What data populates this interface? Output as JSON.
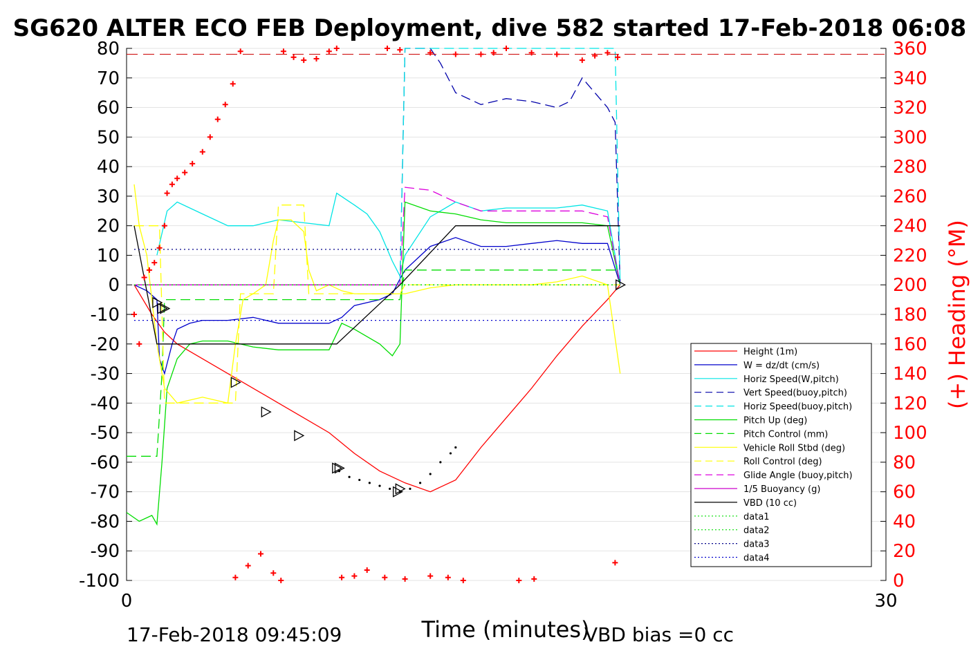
{
  "chart_data": {
    "type": "line",
    "title": "SG620 ALTER ECO FEB Deployment, dive 582 started 17-Feb-2018 06:08",
    "xlabel": "Time (minutes)",
    "ylabel_right": "(+) Heading (°M)",
    "xlim": [
      0,
      30
    ],
    "ylim_left": [
      -100,
      80
    ],
    "ylim_right": [
      0,
      360
    ],
    "x_ticks": [
      "0",
      "30"
    ],
    "y_ticks_left": [
      "80",
      "70",
      "60",
      "50",
      "40",
      "30",
      "20",
      "10",
      "0",
      "-10",
      "-20",
      "-30",
      "-40",
      "-50",
      "-60",
      "-70",
      "-80",
      "-90",
      "-100"
    ],
    "y_ticks_right": [
      "360",
      "340",
      "320",
      "300",
      "280",
      "260",
      "240",
      "220",
      "200",
      "180",
      "160",
      "140",
      "120",
      "100",
      "80",
      "60",
      "40",
      "20",
      "0"
    ],
    "footer_left": "17-Feb-2018 09:45:09",
    "footer_right": "VBD bias =0 cc",
    "grid": true,
    "legend_position": "lower-right",
    "legend": [
      {
        "label": "Height (1m)",
        "color": "#ff0000",
        "style": "solid"
      },
      {
        "label": "W = dz/dt (cm/s)",
        "color": "#0000cc",
        "style": "solid"
      },
      {
        "label": "Horiz Speed(W,pitch)",
        "color": "#00e5e5",
        "style": "solid"
      },
      {
        "label": "Vert Speed(buoy,pitch)",
        "color": "#0000aa",
        "style": "dashed"
      },
      {
        "label": "Horiz Speed(buoy,pitch)",
        "color": "#00e5e5",
        "style": "dashed"
      },
      {
        "label": "Pitch Up (deg)",
        "color": "#00dd00",
        "style": "solid"
      },
      {
        "label": "Pitch Control (mm)",
        "color": "#00dd00",
        "style": "dashed"
      },
      {
        "label": "Vehicle Roll Stbd (deg)",
        "color": "#ffff00",
        "style": "solid"
      },
      {
        "label": "Roll Control (deg)",
        "color": "#ffff00",
        "style": "dashed"
      },
      {
        "label": "Glide Angle (buoy,pitch)",
        "color": "#dd00dd",
        "style": "dashed"
      },
      {
        "label": "1/5 Buoyancy (g)",
        "color": "#cc00cc",
        "style": "solid"
      },
      {
        "label": "VBD (10 cc)",
        "color": "#000000",
        "style": "solid"
      },
      {
        "label": "data1",
        "color": "#00dd00",
        "style": "dotted"
      },
      {
        "label": "data2",
        "color": "#00dd00",
        "style": "dotted"
      },
      {
        "label": "data3",
        "color": "#000088",
        "style": "dotted"
      },
      {
        "label": "data4",
        "color": "#0000cc",
        "style": "dotted"
      }
    ],
    "series": [
      {
        "name": "Height (1m)",
        "color": "#ff0000",
        "style": "solid",
        "x": [
          0.3,
          1.0,
          1.5,
          2.0,
          3.0,
          4.0,
          5.0,
          6.0,
          7.0,
          8.0,
          9.0,
          10.0,
          11.0,
          12.0,
          13.0,
          14.0,
          15.0,
          16.0,
          17.0,
          18.0,
          19.0,
          19.5
        ],
        "y": [
          0,
          -10,
          -16,
          -20,
          -25,
          -30,
          -35,
          -40,
          -45,
          -50,
          -57,
          -63,
          -67,
          -70,
          -66,
          -55,
          -45,
          -35,
          -24,
          -14,
          -5,
          0
        ]
      },
      {
        "name": "W = dz/dt (cm/s)",
        "color": "#0000cc",
        "style": "solid",
        "x": [
          0.3,
          0.8,
          1.2,
          1.3,
          1.5,
          1.8,
          2.0,
          2.5,
          3,
          4,
          5,
          6,
          7,
          8,
          8.5,
          9,
          10,
          10.5,
          10.8,
          11,
          12,
          13,
          14,
          15,
          16,
          17,
          18,
          19,
          19.5
        ],
        "y": [
          0,
          -2,
          -5,
          -25,
          -30,
          -20,
          -15,
          -13,
          -12,
          -12,
          -11,
          -13,
          -13,
          -13,
          -11,
          -7,
          -5,
          -3,
          2,
          5,
          13,
          16,
          13,
          13,
          14,
          15,
          14,
          14,
          0
        ]
      },
      {
        "name": "Horiz Speed(W,pitch)",
        "color": "#00e5e5",
        "style": "solid",
        "x": [
          1.2,
          1.6,
          2,
          3,
          4,
          5,
          6,
          7,
          8,
          8.3,
          9,
          9.5,
          10,
          10.5,
          10.8,
          11,
          12,
          13,
          14,
          15,
          16,
          17,
          18,
          19,
          19.5
        ],
        "y": [
          10,
          25,
          28,
          24,
          20,
          20,
          22,
          21,
          20,
          31,
          27,
          24,
          18,
          8,
          3,
          10,
          23,
          28,
          25,
          26,
          26,
          26,
          27,
          25,
          0
        ]
      },
      {
        "name": "Vert Speed(buoy,pitch)",
        "color": "#0000aa",
        "style": "dashed",
        "x": [
          10.8,
          11,
          11.2,
          12,
          12.4,
          13,
          14,
          15,
          16,
          17,
          17.5,
          18,
          18.5,
          19,
          19.3,
          19.5
        ],
        "y": [
          0,
          80,
          80,
          80,
          75,
          65,
          61,
          63,
          62,
          60,
          62,
          70,
          65,
          60,
          55,
          0
        ]
      },
      {
        "name": "Horiz Speed(buoy,pitch)",
        "color": "#00e5e5",
        "style": "dashed",
        "x": [
          10.8,
          11,
          19.3,
          19.5
        ],
        "y": [
          0,
          80,
          80,
          0
        ]
      },
      {
        "name": "Pitch Up (deg)",
        "color": "#00dd00",
        "style": "solid",
        "x": [
          0,
          0.5,
          1,
          1.2,
          1.4,
          1.6,
          2,
          2.5,
          3,
          4,
          5,
          6,
          7,
          8,
          8.5,
          9,
          10,
          10.5,
          10.8,
          11,
          12,
          13,
          14,
          15,
          16,
          17,
          18,
          19,
          19.5
        ],
        "y": [
          -77,
          -80,
          -78,
          -81,
          -60,
          -35,
          -25,
          -20,
          -19,
          -19,
          -21,
          -22,
          -22,
          -22,
          -13,
          -15,
          -20,
          -24,
          -20,
          28,
          25,
          24,
          22,
          21,
          21,
          21,
          21,
          20,
          0
        ]
      },
      {
        "name": "Pitch Control (mm)",
        "color": "#00dd00",
        "style": "dashed",
        "x": [
          0,
          1.2,
          1.4,
          1.5,
          8.5,
          8.6,
          10.8,
          11,
          19.5
        ],
        "y": [
          -58,
          -58,
          -30,
          -5,
          -5,
          -5,
          -5,
          5,
          5
        ]
      },
      {
        "name": "Vehicle Roll Stbd (deg)",
        "color": "#ffff00",
        "style": "solid",
        "x": [
          0.3,
          0.5,
          0.8,
          1.0,
          1.2,
          1.5,
          2,
          3,
          4,
          4.3,
          4.6,
          5,
          5.5,
          5.8,
          6,
          6.5,
          7,
          7.2,
          7.5,
          8,
          8.5,
          9,
          10,
          11,
          12,
          13,
          14,
          15,
          16,
          17,
          18,
          19,
          19.5
        ],
        "y": [
          34,
          20,
          10,
          -5,
          -20,
          -35,
          -40,
          -38,
          -40,
          -20,
          -5,
          -3,
          0,
          15,
          22,
          22,
          18,
          5,
          -2,
          0,
          -2,
          -3,
          -3,
          -3,
          -1,
          0,
          0,
          0,
          0,
          1,
          3,
          0,
          -30
        ]
      },
      {
        "name": "Roll Control (deg)",
        "color": "#ffff00",
        "style": "dashed",
        "x": [
          0.3,
          1.3,
          1.5,
          4.3,
          4.5,
          5.8,
          6,
          7,
          7.2,
          8.5,
          8.6,
          10.8,
          11,
          19.5
        ],
        "y": [
          20,
          20,
          -40,
          -40,
          -3,
          -3,
          27,
          27,
          -3,
          -3,
          -3,
          -3,
          0,
          0
        ]
      },
      {
        "name": "Glide Angle (buoy,pitch)",
        "color": "#dd00dd",
        "style": "dashed",
        "x": [
          0.3,
          10.8,
          11,
          12,
          13,
          14,
          15,
          16,
          17,
          18,
          19,
          19.5
        ],
        "y": [
          0,
          0,
          33,
          32,
          28,
          25,
          25,
          25,
          25,
          25,
          23,
          0
        ]
      },
      {
        "name": "1/5 Buoyancy (g)",
        "color": "#cc00cc",
        "style": "solid",
        "x": [
          0.3,
          10.8
        ],
        "y": [
          0,
          0
        ]
      },
      {
        "name": "VBD (10 cc)",
        "color": "#000000",
        "style": "solid",
        "x": [
          0.3,
          1.2,
          8.3,
          10.8,
          13,
          19.5
        ],
        "y": [
          20,
          -20,
          -20,
          0,
          20,
          20
        ]
      },
      {
        "name": "data1",
        "color": "#00dd00",
        "style": "dotted",
        "x": [
          0.3,
          19.5
        ],
        "y": [
          0,
          0
        ]
      },
      {
        "name": "data2",
        "color": "#00dd00",
        "style": "dotted",
        "x": [
          0.3,
          19.5
        ],
        "y": [
          0,
          0
        ]
      },
      {
        "name": "data3",
        "color": "#000088",
        "style": "dotted",
        "x": [
          0.3,
          19.5
        ],
        "y": [
          12,
          12
        ]
      },
      {
        "name": "data4",
        "color": "#0000cc",
        "style": "dotted",
        "x": [
          0.3,
          19.5
        ],
        "y": [
          -12,
          -12
        ]
      }
    ],
    "reference_line": {
      "y_right": 356,
      "color": "#cc0000",
      "style": "dashed"
    },
    "heading_markers": {
      "color": "#ff0000",
      "x": [
        0.3,
        0.5,
        0.7,
        0.9,
        1.1,
        1.3,
        1.5,
        1.6,
        1.8,
        2,
        2.3,
        2.6,
        3,
        3.3,
        3.6,
        3.9,
        4.2,
        4.5,
        6.2,
        6.6,
        7,
        7.5,
        8,
        8.3,
        10.3,
        10.8,
        12,
        13,
        14,
        14.5,
        15,
        16,
        17,
        18,
        18.5,
        19,
        19.4,
        4.3,
        4.8,
        5.3,
        5.8,
        6.1,
        8.5,
        9,
        9.5,
        10.2,
        11,
        12,
        12.7,
        13.3,
        15.5,
        16.1,
        19.3
      ],
      "y": [
        180,
        160,
        205,
        210,
        215,
        225,
        240,
        262,
        268,
        272,
        276,
        282,
        290,
        300,
        312,
        322,
        336,
        358,
        358,
        354,
        352,
        353,
        358,
        360,
        360,
        359,
        357,
        356,
        356,
        357,
        360,
        357,
        356,
        352,
        355,
        357,
        354,
        2,
        10,
        18,
        5,
        0,
        2,
        3,
        7,
        2,
        1,
        3,
        2,
        0,
        0,
        1,
        12
      ]
    },
    "triangle_markers": {
      "x": [
        1.2,
        1.4,
        1.5,
        4.3,
        5.5,
        6.8,
        8.3,
        8.4,
        10.7,
        10.8,
        19.5
      ],
      "y": [
        -6,
        -8,
        -8,
        -33,
        -43,
        -51,
        -62,
        -62,
        -70,
        -69,
        0
      ]
    },
    "dot_markers": {
      "x": [
        8.4,
        8.8,
        9.2,
        9.6,
        10,
        10.4,
        10.8,
        11.2,
        11.6,
        12,
        12.4,
        12.8,
        13
      ],
      "y": [
        -63,
        -65,
        -66,
        -67,
        -68,
        -69,
        -70,
        -69,
        -67,
        -64,
        -60,
        -57,
        -55
      ]
    }
  }
}
